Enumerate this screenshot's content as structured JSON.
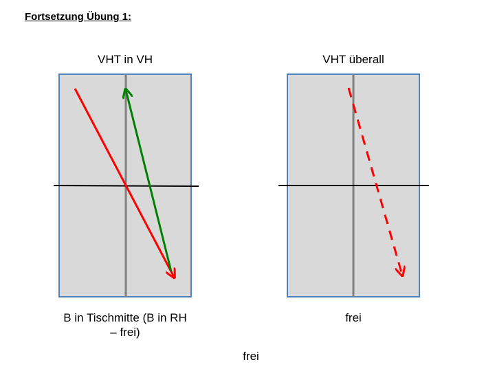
{
  "slide": {
    "title": "Fortsetzung Übung 1:",
    "footer_note": "frei"
  },
  "panels": [
    {
      "heading": "VHT in VH",
      "caption": "B in Tischmitte (B in RH – frei)"
    },
    {
      "heading": "VHT überall",
      "caption": "frei"
    }
  ],
  "colors": {
    "panel_fill": "#d9d9d9",
    "panel_border": "#4f81bd",
    "center_line": "#808080",
    "net_line": "#000000",
    "arrow_red": "#ff0000",
    "arrow_green": "#008000"
  }
}
